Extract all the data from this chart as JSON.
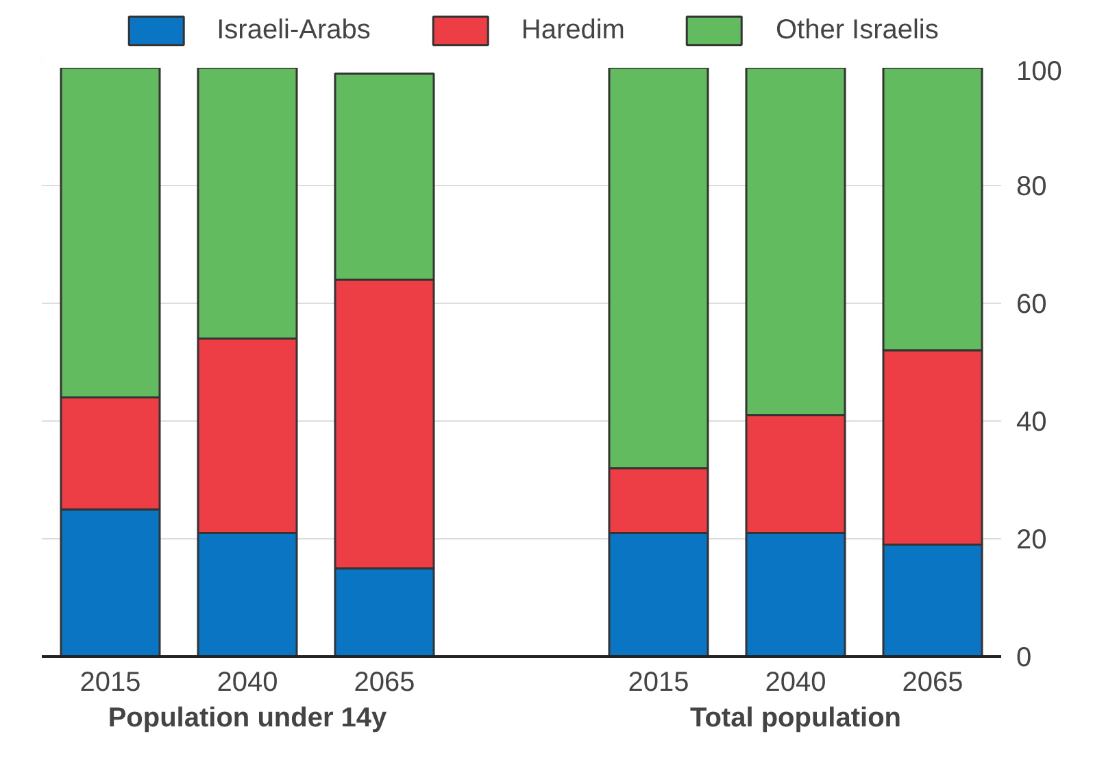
{
  "chart_data": {
    "type": "bar",
    "stacked": true,
    "categories": [
      "2015",
      "2040",
      "2065",
      null,
      "2015",
      "2040",
      "2065"
    ],
    "series": [
      {
        "name": "Israeli-Arabs",
        "color": "#0a75c2",
        "values": [
          25,
          21,
          15,
          null,
          21,
          21,
          19
        ]
      },
      {
        "name": "Haredim",
        "color": "#ee3e45",
        "values": [
          19,
          33,
          49,
          null,
          11,
          20,
          33
        ]
      },
      {
        "name": "Other Israelis",
        "color": "#63bb5f",
        "values": [
          56,
          46,
          35,
          null,
          68,
          59,
          48
        ]
      }
    ],
    "ylim": [
      0,
      100
    ],
    "yticks": [
      0,
      20,
      40,
      60,
      80,
      100
    ],
    "grid": "y",
    "legend": "top",
    "annotations": [
      "Population under 14y",
      "Total population"
    ]
  }
}
